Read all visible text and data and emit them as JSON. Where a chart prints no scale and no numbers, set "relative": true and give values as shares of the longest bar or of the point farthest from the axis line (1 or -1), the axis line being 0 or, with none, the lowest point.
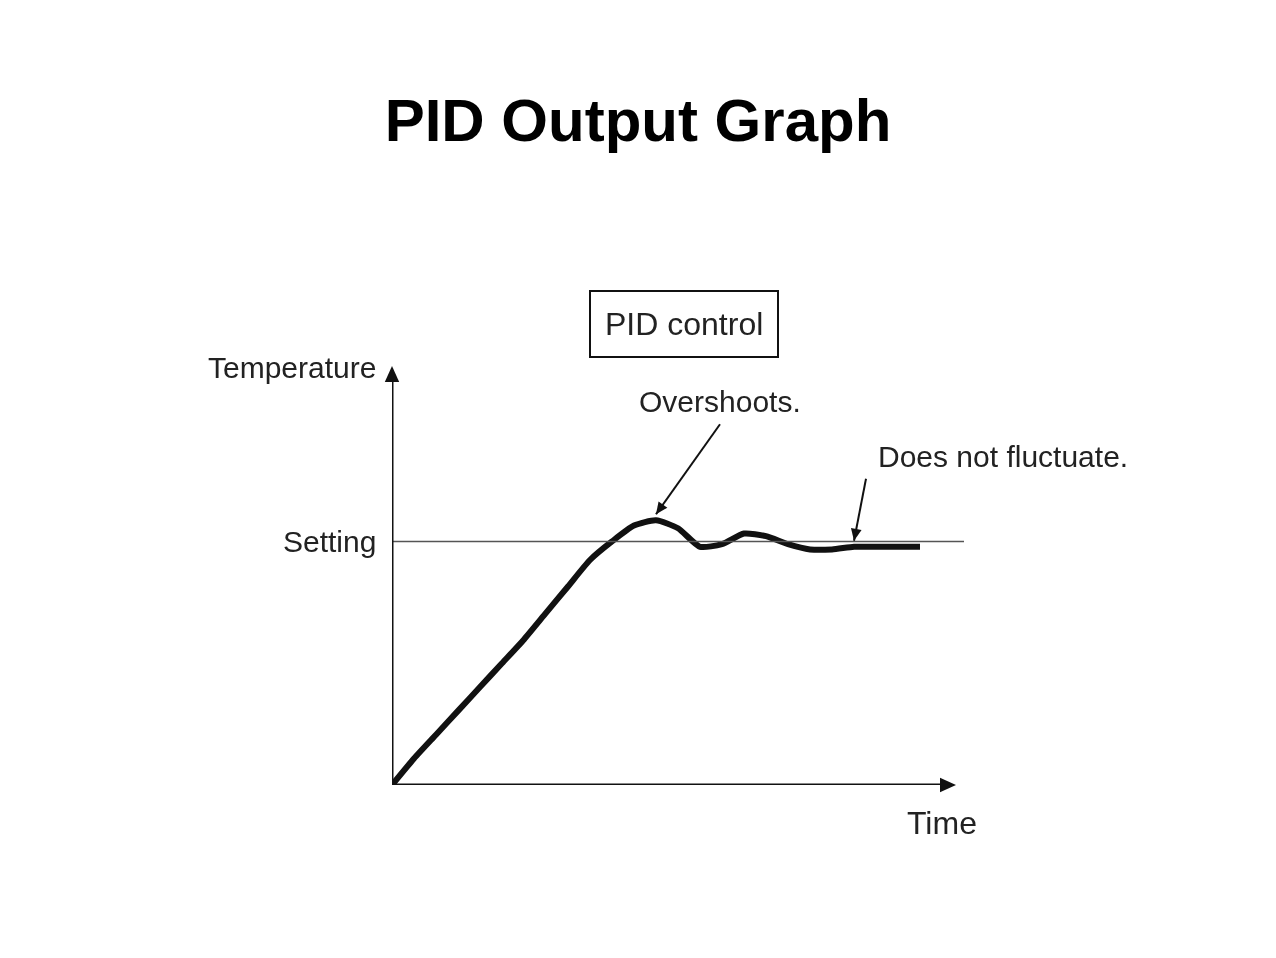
{
  "chart_data": {
    "type": "line",
    "title": "PID Output Graph",
    "subtitle": "PID control",
    "xlabel": "Time",
    "ylabel": "Temperature",
    "relative": true,
    "categories": [
      null,
      null,
      null,
      null,
      null,
      null,
      null,
      null,
      null,
      null,
      null,
      null,
      null,
      null,
      null,
      null,
      null,
      null,
      null,
      null,
      null,
      null,
      null,
      null,
      null
    ],
    "series": [
      {
        "color": "#111111",
        "values": [
          0,
          0.1,
          0.19,
          0.28,
          0.37,
          0.46,
          0.55,
          0.65,
          0.75,
          0.85,
          0.92,
          0.98,
          1,
          0.97,
          0.9,
          0.91,
          0.95,
          0.94,
          0.91,
          0.89,
          0.89,
          0.9,
          0.9,
          0.9,
          0.9
        ]
      }
    ],
    "ref_lines": [
      {
        "axis": "y",
        "value": 0.92,
        "label": "Setting",
        "color": "#555555"
      }
    ],
    "annotations": [
      "Overshoots.",
      "Does not fluctuate."
    ],
    "grid": false,
    "marker": "none",
    "line_style": "solid"
  }
}
